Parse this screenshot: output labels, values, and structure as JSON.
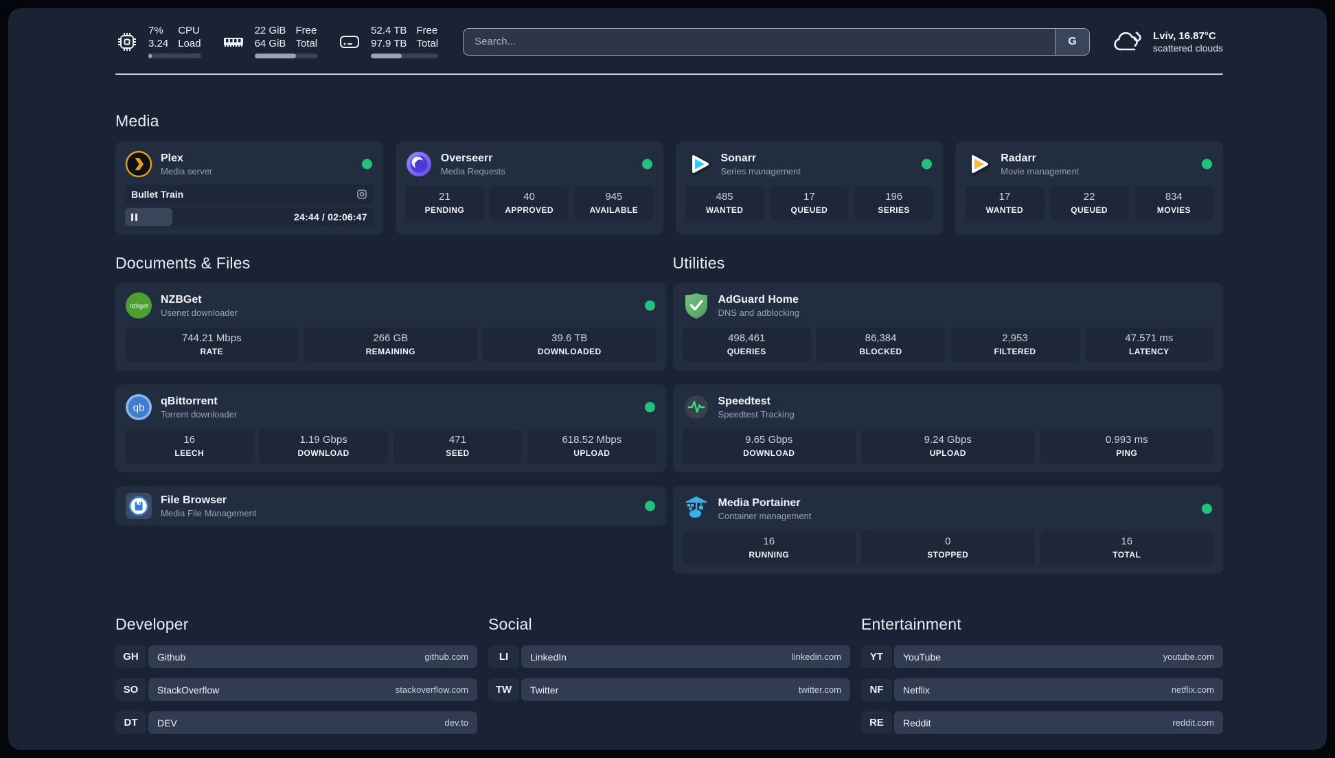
{
  "colors": {
    "status_online": "#21c17e",
    "accent_amber": "#e6a10e",
    "accent_blue": "#35c8f8",
    "accent_yellow": "#ffb93d"
  },
  "header": {
    "stats": [
      {
        "icon": "cpu-icon",
        "value_top": "7%",
        "value_bottom": "3.24",
        "label_top": "CPU",
        "label_bottom": "Load",
        "progress_pct": 7
      },
      {
        "icon": "ram-icon",
        "value_top": "22 GiB",
        "value_bottom": "64 GiB",
        "label_top": "Free",
        "label_bottom": "Total",
        "progress_pct": 66
      },
      {
        "icon": "disk-icon",
        "value_top": "52.4 TB",
        "value_bottom": "97.9 TB",
        "label_top": "Free",
        "label_bottom": "Total",
        "progress_pct": 46
      }
    ],
    "search": {
      "placeholder": "Search...",
      "button_label": "G"
    },
    "weather": {
      "icon": "cloud-icon",
      "line1": "Lviv, 16.87°C",
      "line2": "scattered clouds"
    }
  },
  "media": {
    "title": "Media",
    "plex": {
      "icon": "plex-icon",
      "name": "Plex",
      "desc": "Media server",
      "status": "online",
      "now_playing": "Bullet Train",
      "time": "24:44 / 02:06:47",
      "progress_pct": 19
    },
    "overseerr": {
      "icon": "overseerr-icon",
      "name": "Overseerr",
      "desc": "Media Requests",
      "status": "online",
      "stats": [
        {
          "v": "21",
          "l": "PENDING"
        },
        {
          "v": "40",
          "l": "APPROVED"
        },
        {
          "v": "945",
          "l": "AVAILABLE"
        }
      ]
    },
    "sonarr": {
      "icon": "sonarr-icon",
      "name": "Sonarr",
      "desc": "Series management",
      "status": "online",
      "stats": [
        {
          "v": "485",
          "l": "WANTED"
        },
        {
          "v": "17",
          "l": "QUEUED"
        },
        {
          "v": "196",
          "l": "SERIES"
        }
      ]
    },
    "radarr": {
      "icon": "radarr-icon",
      "name": "Radarr",
      "desc": "Movie management",
      "status": "online",
      "stats": [
        {
          "v": "17",
          "l": "WANTED"
        },
        {
          "v": "22",
          "l": "QUEUED"
        },
        {
          "v": "834",
          "l": "MOVIES"
        }
      ]
    }
  },
  "documents": {
    "title": "Documents & Files",
    "nzbget": {
      "icon": "nzbget-icon",
      "name": "NZBGet",
      "desc": "Usenet downloader",
      "status": "online",
      "stats": [
        {
          "v": "744.21 Mbps",
          "l": "RATE"
        },
        {
          "v": "266 GB",
          "l": "REMAINING"
        },
        {
          "v": "39.6 TB",
          "l": "DOWNLOADED"
        }
      ]
    },
    "qbittorrent": {
      "icon": "qbittorrent-icon",
      "name": "qBittorrent",
      "desc": "Torrent downloader",
      "status": "online",
      "stats": [
        {
          "v": "16",
          "l": "LEECH"
        },
        {
          "v": "1.19 Gbps",
          "l": "DOWNLOAD"
        },
        {
          "v": "471",
          "l": "SEED"
        },
        {
          "v": "618.52 Mbps",
          "l": "UPLOAD"
        }
      ]
    },
    "filebrowser": {
      "icon": "filebrowser-icon",
      "name": "File Browser",
      "desc": "Media File Management",
      "status": "online"
    }
  },
  "utilities": {
    "title": "Utilities",
    "adguard": {
      "icon": "adguard-icon",
      "name": "AdGuard Home",
      "desc": "DNS and adblocking",
      "stats": [
        {
          "v": "498,461",
          "l": "QUERIES"
        },
        {
          "v": "86,384",
          "l": "BLOCKED"
        },
        {
          "v": "2,953",
          "l": "FILTERED"
        },
        {
          "v": "47.571 ms",
          "l": "LATENCY"
        }
      ]
    },
    "speedtest": {
      "icon": "speedtest-icon",
      "name": "Speedtest",
      "desc": "Speedtest Tracking",
      "stats": [
        {
          "v": "9.65 Gbps",
          "l": "DOWNLOAD"
        },
        {
          "v": "9.24 Gbps",
          "l": "UPLOAD"
        },
        {
          "v": "0.993 ms",
          "l": "PING"
        }
      ]
    },
    "portainer": {
      "icon": "portainer-icon",
      "name": "Media Portainer",
      "desc": "Container management",
      "status": "online",
      "stats": [
        {
          "v": "16",
          "l": "RUNNING"
        },
        {
          "v": "0",
          "l": "STOPPED"
        },
        {
          "v": "16",
          "l": "TOTAL"
        }
      ]
    }
  },
  "developer": {
    "title": "Developer",
    "items": [
      {
        "abbr": "GH",
        "name": "Github",
        "url": "github.com"
      },
      {
        "abbr": "SO",
        "name": "StackOverflow",
        "url": "stackoverflow.com"
      },
      {
        "abbr": "DT",
        "name": "DEV",
        "url": "dev.to"
      }
    ]
  },
  "social": {
    "title": "Social",
    "items": [
      {
        "abbr": "LI",
        "name": "LinkedIn",
        "url": "linkedin.com"
      },
      {
        "abbr": "TW",
        "name": "Twitter",
        "url": "twitter.com"
      }
    ]
  },
  "entertainment": {
    "title": "Entertainment",
    "items": [
      {
        "abbr": "YT",
        "name": "YouTube",
        "url": "youtube.com"
      },
      {
        "abbr": "NF",
        "name": "Netflix",
        "url": "netflix.com"
      },
      {
        "abbr": "RE",
        "name": "Reddit",
        "url": "reddit.com"
      }
    ]
  }
}
